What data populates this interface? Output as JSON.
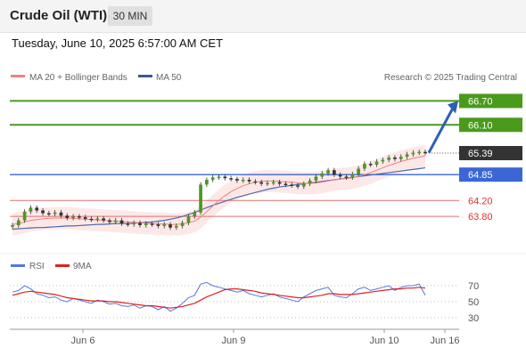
{
  "header": {
    "title": "Crude Oil (WTI)",
    "timeframe": "30 MIN"
  },
  "datetime": "Tuesday, June 10, 2025 6:57:00 AM CET",
  "legend": {
    "ma20": "MA 20 + Bollinger Bands",
    "ma50": "MA 50",
    "credit": "Research © 2025 Trading Central"
  },
  "rsi_legend": {
    "rsi": "RSI",
    "ma9": "9MA"
  },
  "colors": {
    "resistance": "#4a9a1c",
    "support_strong": "#3a66d6",
    "support_weak": "#e07070",
    "price_tag": "#333333",
    "candle": "#4a9a1c",
    "ma20": "#f08080",
    "ma50": "#4a6ab0",
    "rsi": "#5577dd",
    "rsi_ma": "#dd2222",
    "arrow": "#2d5fb5"
  },
  "chart_data": {
    "type": "candlestick",
    "y_range": [
      63.2,
      67.0
    ],
    "levels": [
      {
        "value": 66.7,
        "label": "66.70",
        "kind": "resistance"
      },
      {
        "value": 66.1,
        "label": "66.10",
        "kind": "resistance"
      },
      {
        "value": 65.39,
        "label": "65.39",
        "kind": "last_price"
      },
      {
        "value": 64.85,
        "label": "64.85",
        "kind": "support_strong"
      },
      {
        "value": 64.2,
        "label": "64.20",
        "kind": "support_weak"
      },
      {
        "value": 63.8,
        "label": "63.80",
        "kind": "support_weak"
      }
    ],
    "x_labels": [
      "Jun 6",
      "Jun 9",
      "Jun 10",
      "Jun 16"
    ],
    "closes": [
      63.58,
      63.7,
      63.92,
      64.02,
      63.95,
      63.88,
      63.86,
      63.9,
      63.82,
      63.76,
      63.8,
      63.78,
      63.74,
      63.72,
      63.75,
      63.7,
      63.66,
      63.7,
      63.62,
      63.6,
      63.64,
      63.58,
      63.62,
      63.6,
      63.56,
      63.6,
      63.52,
      63.56,
      63.64,
      63.8,
      63.9,
      64.6,
      64.72,
      64.78,
      64.8,
      64.76,
      64.74,
      64.7,
      64.72,
      64.68,
      64.66,
      64.62,
      64.64,
      64.66,
      64.62,
      64.6,
      64.58,
      64.55,
      64.62,
      64.7,
      64.8,
      64.88,
      64.96,
      64.85,
      64.8,
      64.78,
      64.86,
      65.0,
      65.12,
      65.1,
      65.18,
      65.22,
      65.28,
      65.24,
      65.3,
      65.36,
      65.4,
      65.42,
      65.4
    ],
    "ma20": [
      63.6,
      63.62,
      63.66,
      63.7,
      63.72,
      63.74,
      63.75,
      63.76,
      63.76,
      63.76,
      63.75,
      63.74,
      63.73,
      63.72,
      63.71,
      63.7,
      63.69,
      63.68,
      63.67,
      63.66,
      63.65,
      63.64,
      63.63,
      63.62,
      63.61,
      63.61,
      63.6,
      63.6,
      63.61,
      63.64,
      63.68,
      63.78,
      63.92,
      64.06,
      64.2,
      64.32,
      64.42,
      64.5,
      64.57,
      64.62,
      64.66,
      64.68,
      64.69,
      64.69,
      64.68,
      64.67,
      64.66,
      64.64,
      64.63,
      64.63,
      64.64,
      64.66,
      64.69,
      64.72,
      64.74,
      64.75,
      64.77,
      64.8,
      64.85,
      64.9,
      64.96,
      65.02,
      65.08,
      65.13,
      65.18,
      65.22,
      65.26,
      65.29,
      65.32
    ],
    "ma50": [
      63.48,
      63.49,
      63.5,
      63.51,
      63.52,
      63.52,
      63.53,
      63.54,
      63.55,
      63.56,
      63.56,
      63.57,
      63.58,
      63.59,
      63.6,
      63.6,
      63.61,
      63.62,
      63.62,
      63.62,
      63.63,
      63.64,
      63.65,
      63.66,
      63.68,
      63.7,
      63.73,
      63.76,
      63.8,
      63.85,
      63.9,
      63.96,
      64.02,
      64.08,
      64.13,
      64.18,
      64.23,
      64.28,
      64.32,
      64.36,
      64.4,
      64.44,
      64.48,
      64.51,
      64.54,
      64.56,
      64.58,
      64.6,
      64.62,
      64.64,
      64.66,
      64.68,
      64.7,
      64.72,
      64.74,
      64.76,
      64.78,
      64.8,
      64.82,
      64.84,
      64.86,
      64.88,
      64.9,
      64.92,
      64.94,
      64.96,
      64.98,
      65.0,
      65.02
    ],
    "rsi": {
      "ticks": [
        70,
        50,
        30
      ],
      "values": [
        62,
        64,
        70,
        66,
        60,
        58,
        55,
        56,
        52,
        50,
        54,
        52,
        50,
        48,
        52,
        50,
        47,
        48,
        45,
        44,
        46,
        42,
        45,
        44,
        40,
        44,
        38,
        42,
        48,
        55,
        58,
        72,
        74,
        70,
        68,
        66,
        64,
        62,
        64,
        60,
        58,
        56,
        58,
        60,
        56,
        54,
        52,
        50,
        56,
        60,
        64,
        66,
        68,
        58,
        56,
        55,
        60,
        66,
        68,
        64,
        66,
        68,
        70,
        64,
        68,
        70,
        70,
        72,
        58
      ],
      "ma9": [
        58,
        60,
        62,
        63,
        62,
        61,
        60,
        59,
        57,
        55,
        54,
        53,
        52,
        51,
        51,
        51,
        50,
        50,
        49,
        48,
        47,
        46,
        45,
        45,
        44,
        43,
        42,
        43,
        44,
        46,
        48,
        52,
        56,
        59,
        62,
        65,
        66,
        66,
        65,
        64,
        63,
        61,
        60,
        59,
        58,
        57,
        56,
        55,
        55,
        56,
        57,
        58,
        60,
        60,
        59,
        59,
        59,
        60,
        61,
        62,
        63,
        64,
        65,
        66,
        66,
        67,
        67,
        68,
        67
      ]
    }
  }
}
